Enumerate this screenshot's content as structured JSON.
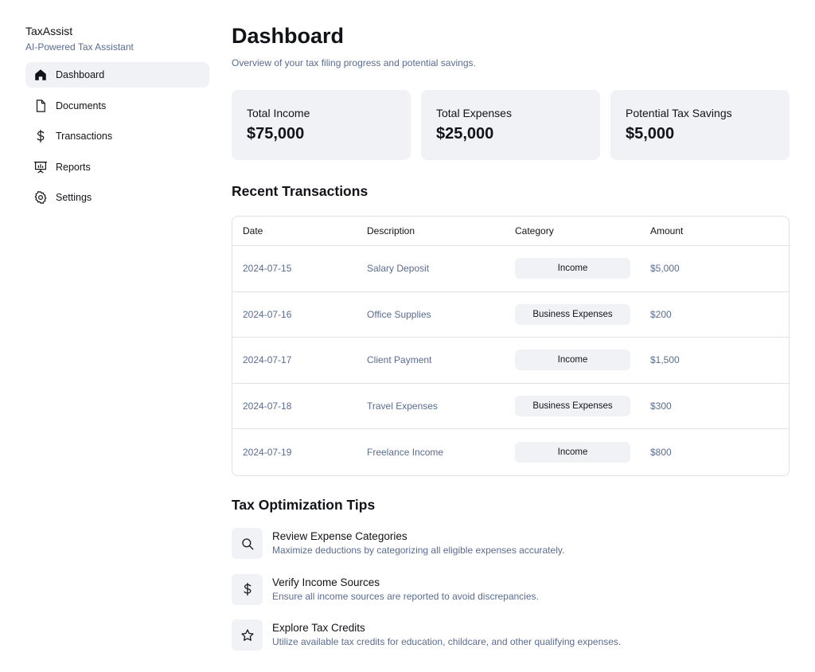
{
  "app": {
    "name": "TaxAssist",
    "tagline": "AI-Powered Tax Assistant"
  },
  "sidebar": {
    "items": [
      {
        "label": "Dashboard",
        "icon": "home-icon",
        "active": true
      },
      {
        "label": "Documents",
        "icon": "document-icon",
        "active": false
      },
      {
        "label": "Transactions",
        "icon": "dollar-icon",
        "active": false
      },
      {
        "label": "Reports",
        "icon": "presentation-chart-icon",
        "active": false
      },
      {
        "label": "Settings",
        "icon": "gear-icon",
        "active": false
      }
    ]
  },
  "header": {
    "title": "Dashboard",
    "subtitle": "Overview of your tax filing progress and potential savings."
  },
  "stats": [
    {
      "label": "Total Income",
      "value": "$75,000"
    },
    {
      "label": "Total Expenses",
      "value": "$25,000"
    },
    {
      "label": "Potential Tax Savings",
      "value": "$5,000"
    }
  ],
  "transactions": {
    "title": "Recent Transactions",
    "columns": [
      "Date",
      "Description",
      "Category",
      "Amount"
    ],
    "rows": [
      {
        "date": "2024-07-15",
        "description": "Salary Deposit",
        "category": "Income",
        "amount": "$5,000"
      },
      {
        "date": "2024-07-16",
        "description": "Office Supplies",
        "category": "Business Expenses",
        "amount": "$200"
      },
      {
        "date": "2024-07-17",
        "description": "Client Payment",
        "category": "Income",
        "amount": "$1,500"
      },
      {
        "date": "2024-07-18",
        "description": "Travel Expenses",
        "category": "Business Expenses",
        "amount": "$300"
      },
      {
        "date": "2024-07-19",
        "description": "Freelance Income",
        "category": "Income",
        "amount": "$800"
      }
    ]
  },
  "tips": {
    "title": "Tax Optimization Tips",
    "items": [
      {
        "icon": "search-icon",
        "title": "Review Expense Categories",
        "description": "Maximize deductions by categorizing all eligible expenses accurately."
      },
      {
        "icon": "dollar-icon",
        "title": "Verify Income Sources",
        "description": "Ensure all income sources are reported to avoid discrepancies."
      },
      {
        "icon": "star-icon",
        "title": "Explore Tax Credits",
        "description": "Utilize available tax credits for education, childcare, and other qualifying expenses."
      }
    ]
  },
  "colors": {
    "text": "#111318",
    "muted": "#5b6c90",
    "card": "#f1f2f6",
    "border": "#dfe2e8"
  }
}
